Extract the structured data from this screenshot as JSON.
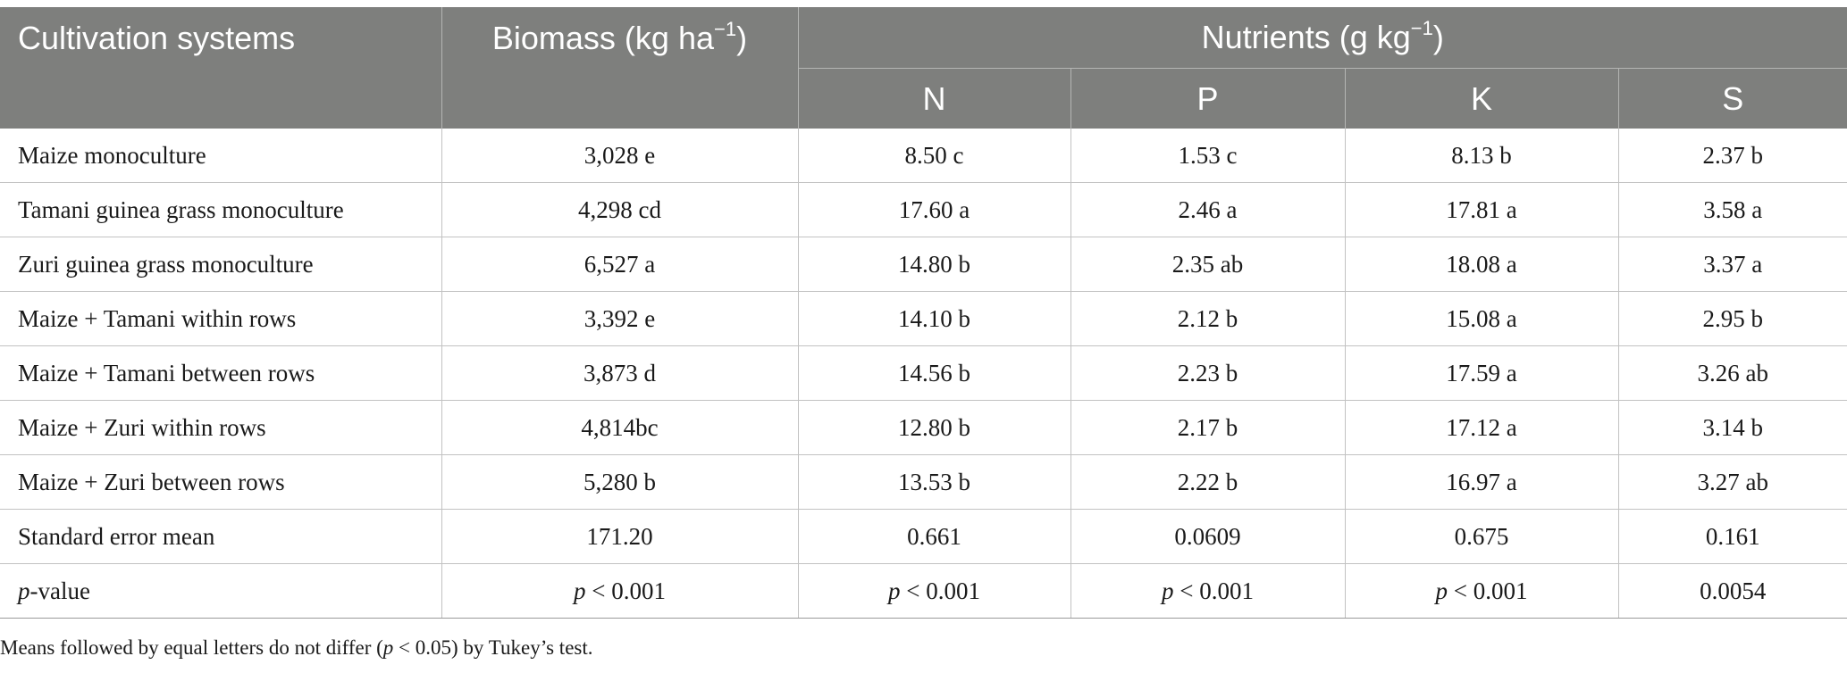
{
  "header": {
    "cultivation": "Cultivation systems",
    "biomass_text": "Biomass (kg ha",
    "biomass_sup": "−1",
    "biomass_close": ")",
    "nutrients_text": "Nutrients (g kg",
    "nutrients_sup": "−1",
    "nutrients_close": ")",
    "sub": [
      "N",
      "P",
      "K",
      "S"
    ]
  },
  "rows": [
    {
      "system": "Maize monoculture",
      "biomass": "3,028 e",
      "n": "8.50 c",
      "p": "1.53 c",
      "k": "8.13 b",
      "s": "2.37 b"
    },
    {
      "system": "Tamani guinea grass monoculture",
      "biomass": "4,298 cd",
      "n": "17.60 a",
      "p": "2.46 a",
      "k": "17.81 a",
      "s": "3.58 a"
    },
    {
      "system": "Zuri guinea grass monoculture",
      "biomass": "6,527 a",
      "n": "14.80 b",
      "p": "2.35 ab",
      "k": "18.08 a",
      "s": "3.37 a"
    },
    {
      "system": "Maize + Tamani within rows",
      "biomass": "3,392 e",
      "n": "14.10 b",
      "p": "2.12 b",
      "k": "15.08 a",
      "s": "2.95 b"
    },
    {
      "system": "Maize + Tamani between rows",
      "biomass": "3,873 d",
      "n": "14.56 b",
      "p": "2.23 b",
      "k": "17.59 a",
      "s": "3.26 ab"
    },
    {
      "system": "Maize + Zuri within rows",
      "biomass": "4,814bc",
      "n": "12.80 b",
      "p": "2.17 b",
      "k": "17.12 a",
      "s": "3.14 b"
    },
    {
      "system": "Maize + Zuri between rows",
      "biomass": "5,280 b",
      "n": "13.53 b",
      "p": "2.22 b",
      "k": "16.97 a",
      "s": "3.27 ab"
    },
    {
      "system": "Standard error mean",
      "biomass": "171.20",
      "n": "0.661",
      "p": "0.0609",
      "k": "0.675",
      "s": "0.161"
    }
  ],
  "pvalue_row": {
    "label_italic": "p",
    "label_rest": "-value",
    "p_italic": "p",
    "biomass_rest": " < 0.001",
    "n_rest": " < 0.001",
    "p_rest": " < 0.001",
    "k_rest": " < 0.001",
    "s": "0.0054"
  },
  "footnote": {
    "before": "Means followed by equal letters do not differ (",
    "italic": "p",
    "after": " < 0.05) by Tukey’s test."
  }
}
